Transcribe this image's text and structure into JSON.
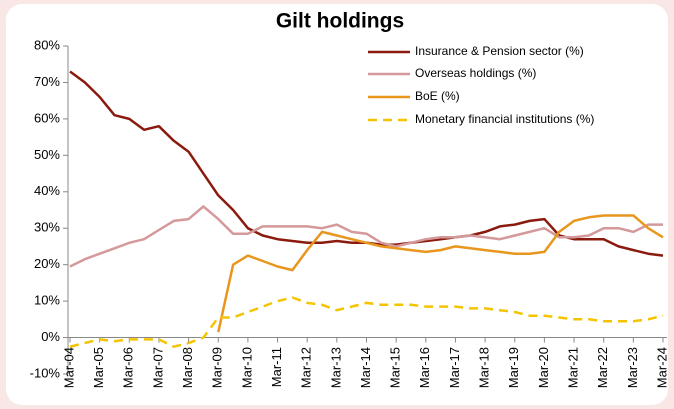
{
  "chart_data": {
    "type": "line",
    "title": "Gilt holdings",
    "categories": [
      "Mar-04",
      null,
      "Mar-05",
      null,
      "Mar-06",
      null,
      "Mar-07",
      null,
      "Mar-08",
      null,
      "Mar-09",
      null,
      "Mar-10",
      null,
      "Mar-11",
      null,
      "Mar-12",
      null,
      "Mar-13",
      null,
      "Mar-14",
      null,
      "Mar-15",
      null,
      "Mar-16",
      null,
      "Mar-17",
      null,
      "Mar-18",
      null,
      "Mar-19",
      null,
      "Mar-20",
      null,
      "Mar-21",
      null,
      "Mar-22",
      null,
      "Mar-23",
      null,
      "Mar-24"
    ],
    "series": [
      {
        "name": "Insurance & Pension sector (%)",
        "color": "#8b1a0e",
        "values": [
          73,
          70,
          66,
          61,
          60,
          57,
          58,
          54,
          51,
          45,
          39,
          35,
          30,
          28,
          27,
          26.5,
          26,
          26,
          26.5,
          26,
          26,
          25.5,
          25.5,
          26,
          26.5,
          27,
          27.5,
          28,
          29,
          30.5,
          31,
          32,
          32.5,
          28,
          27,
          27,
          27,
          25,
          24,
          23,
          22.5
        ]
      },
      {
        "name": "Overseas holdings (%)",
        "color": "#d4999a",
        "values": [
          19.5,
          21.5,
          23,
          24.5,
          26,
          27,
          29.5,
          32,
          32.5,
          36,
          32.5,
          28.5,
          28.5,
          30.5,
          30.5,
          30.5,
          30.5,
          30,
          31,
          29,
          28.5,
          26,
          25,
          26,
          27,
          27.5,
          27.5,
          28,
          27.5,
          27,
          28,
          29,
          30,
          27.5,
          27.5,
          28,
          30,
          30,
          29,
          31,
          31
        ]
      },
      {
        "name": "BoE (%)",
        "color": "#e8961e",
        "values": [
          null,
          null,
          null,
          null,
          null,
          null,
          null,
          null,
          null,
          null,
          1.5,
          20,
          22.5,
          21,
          19.5,
          18.5,
          24,
          29,
          28,
          27,
          26,
          25,
          24.5,
          24,
          23.5,
          24,
          25,
          24.5,
          24,
          23.5,
          23,
          23,
          23.5,
          29,
          32,
          33,
          33.5,
          33.5,
          33.5,
          30,
          27.5
        ]
      },
      {
        "name": "Monetary financial institutions (%)",
        "color": "#f5c400",
        "style": "dashed",
        "values": [
          -2.5,
          -1.5,
          -0.5,
          -1,
          -0.5,
          -0.5,
          -0.5,
          -2.5,
          -1.5,
          0,
          5.5,
          5.5,
          7,
          8.5,
          10,
          11,
          9.5,
          9,
          7.5,
          8.5,
          9.5,
          9,
          9,
          9,
          8.5,
          8.5,
          8.5,
          8,
          8,
          7.5,
          7,
          6,
          6,
          5.5,
          5,
          5,
          4.5,
          4.5,
          4.5,
          5,
          6
        ]
      }
    ],
    "ylim": [
      -10,
      80
    ],
    "yticks": [
      {
        "value": -10,
        "label": "-10%"
      },
      {
        "value": 0,
        "label": "0%"
      },
      {
        "value": 10,
        "label": "10%"
      },
      {
        "value": 20,
        "label": "20%"
      },
      {
        "value": 30,
        "label": "30%"
      },
      {
        "value": 40,
        "label": "40%"
      },
      {
        "value": 50,
        "label": "50%"
      },
      {
        "value": 60,
        "label": "60%"
      },
      {
        "value": 70,
        "label": "70%"
      },
      {
        "value": 80,
        "label": "80%"
      }
    ],
    "legend": "upper right"
  }
}
